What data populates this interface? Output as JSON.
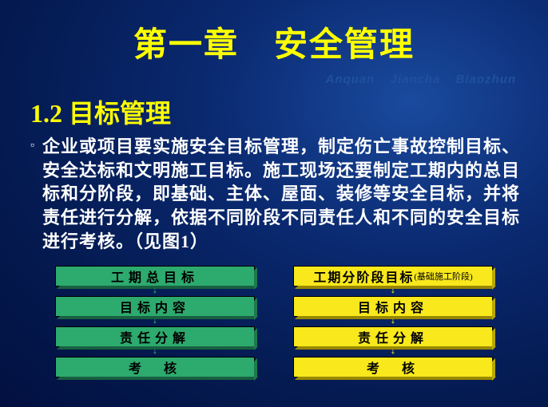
{
  "title": "第一章　安全管理",
  "pinyin": "Anquan Jiancha Biaozhun",
  "section": "1.2 目标管理",
  "bullet_glyph": "▫",
  "body": "企业或项目要实施安全目标管理，制定伤亡事故控制目标、安全达标和文明施工目标。施工现场还要制定工期内的总目标和分阶段，即基础、主体、屋面、装修等安全目标，并将责任进行分解，依据不同阶段不同责任人和不同的安全目标进行考核。（见图1）",
  "left_flow": {
    "color": "green",
    "boxes": [
      {
        "label": "工期总目标"
      },
      {
        "label": "目标内容"
      },
      {
        "label": "责任分解"
      },
      {
        "label": "考　核"
      }
    ]
  },
  "right_flow": {
    "color": "yellow",
    "boxes": [
      {
        "label": "工期分阶段目标",
        "sub": "(基础施工阶段)"
      },
      {
        "label": "目标内容"
      },
      {
        "label": "责任分解"
      },
      {
        "label": "考　核"
      }
    ]
  },
  "colors": {
    "title": "#ffff00",
    "body_text": "#ffffff",
    "green_fill": "#2daa6e",
    "yellow_fill": "#f8e81c",
    "bg_center": "#1a4a9e",
    "bg_edge": "#021040"
  }
}
